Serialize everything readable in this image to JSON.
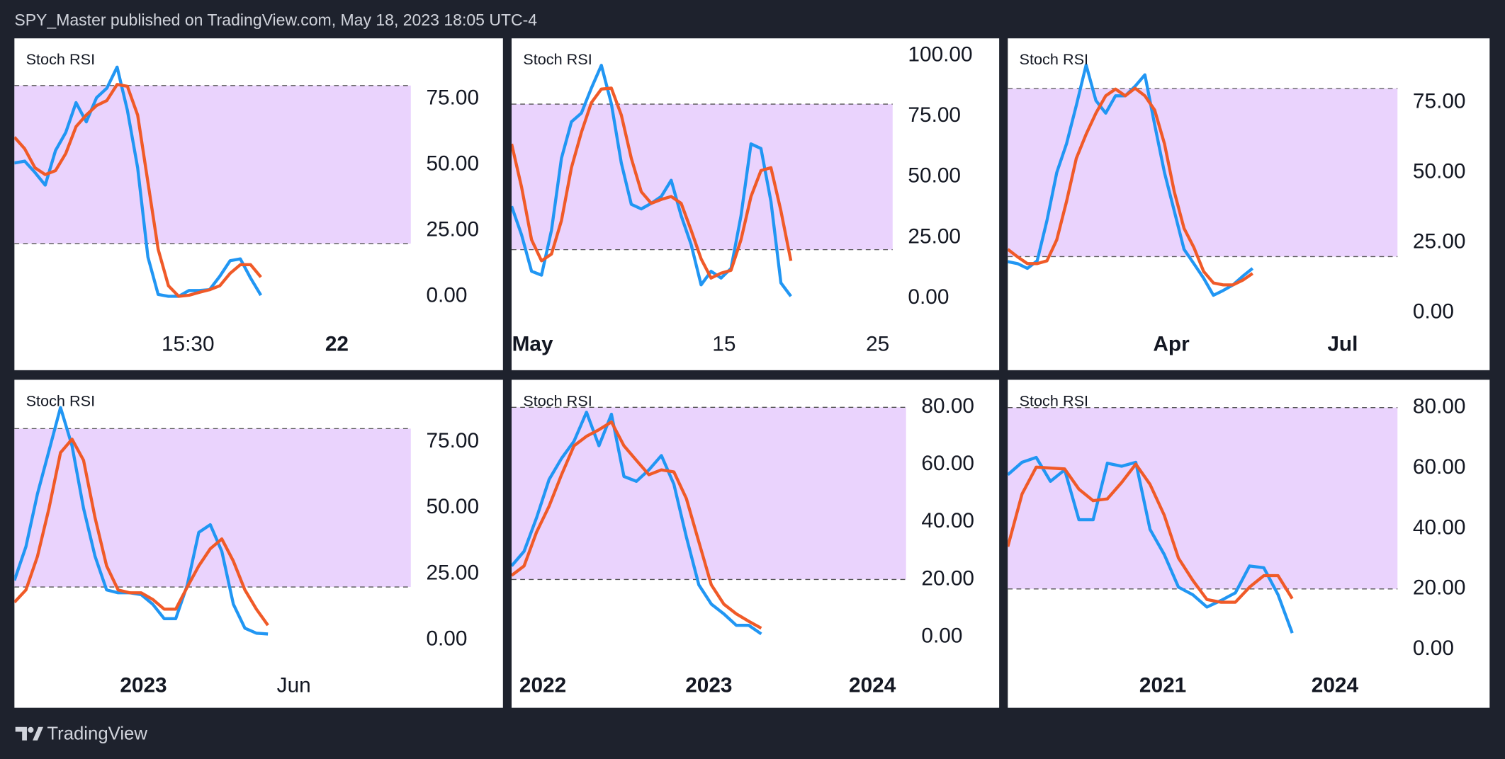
{
  "header": "SPY_Master published on TradingView.com, May 18, 2023 18:05 UTC-4",
  "footer": "TradingView",
  "chart_data": [
    {
      "type": "line",
      "title": "Stoch RSI",
      "band": [
        20,
        80
      ],
      "band_color": "#ead3fd",
      "ylim": [
        -11.3,
        97.9
      ],
      "xlim": [
        0,
        38.6
      ],
      "yticks": [
        {
          "value": 0,
          "label": "0.00"
        },
        {
          "value": 25,
          "label": "25.00"
        },
        {
          "value": 50,
          "label": "50.00"
        },
        {
          "value": 75,
          "label": "75.00"
        }
      ],
      "xticks": [
        {
          "value": 16.9,
          "label": "15:30",
          "bold": false
        },
        {
          "value": 31.4,
          "label": "22",
          "bold": true
        }
      ],
      "series": [
        {
          "color": "#2196f3",
          "values": [
            50.6,
            51.3,
            47,
            42.2,
            55.3,
            62.2,
            73.5,
            66.2,
            75.4,
            79,
            87,
            70.6,
            48.8,
            14.9,
            0.7,
            0,
            0,
            2.2,
            2.2,
            2.5,
            7.6,
            13.5,
            14.2,
            6.9,
            0.4
          ]
        },
        {
          "color": "#f05a28",
          "values": [
            60.4,
            56,
            48.8,
            46.2,
            47.7,
            54.2,
            64.4,
            68.8,
            72.4,
            74.3,
            80.4,
            79.7,
            68.8,
            43.3,
            17.8,
            4,
            0,
            0.4,
            1.5,
            2.5,
            4,
            8.7,
            12,
            12,
            7.3
          ]
        }
      ]
    },
    {
      "type": "line",
      "title": "Stoch RSI",
      "band": [
        20,
        80
      ],
      "band_color": "#ead3fd",
      "ylim": [
        -11.5,
        107.1
      ],
      "xlim": [
        0,
        38.2
      ],
      "yticks": [
        {
          "value": 0,
          "label": "0.00"
        },
        {
          "value": 25,
          "label": "25.00"
        },
        {
          "value": 50,
          "label": "50.00"
        },
        {
          "value": 75,
          "label": "75.00"
        },
        {
          "value": 100,
          "label": "100.00"
        }
      ],
      "xticks": [
        {
          "value": 2.1,
          "label": "May",
          "bold": true
        },
        {
          "value": 21.3,
          "label": "15",
          "bold": false
        },
        {
          "value": 36.7,
          "label": "25",
          "bold": false
        }
      ],
      "series": [
        {
          "color": "#2196f3",
          "values": [
            37.9,
            26.1,
            11.1,
            9.5,
            28,
            57.7,
            72.7,
            76.3,
            86.6,
            96,
            80.2,
            55.7,
            38.7,
            36.8,
            39.1,
            41.9,
            48.6,
            34,
            22.1,
            5.5,
            11.1,
            8.3,
            12.3,
            34,
            63.6,
            61.7,
            39.9,
            6.3,
            0.8
          ]
        },
        {
          "color": "#f05a28",
          "values": [
            63.6,
            45.8,
            24.1,
            15.4,
            18.2,
            32,
            53.8,
            68.4,
            80.6,
            86.2,
            86.6,
            75.5,
            57.7,
            43.9,
            39.1,
            40.7,
            41.9,
            39.1,
            28,
            16.2,
            8.3,
            10.3,
            11.5,
            24.1,
            41.9,
            52.6,
            53.8,
            36,
            15.4
          ]
        }
      ]
    },
    {
      "type": "line",
      "title": "Stoch RSI",
      "band": [
        20,
        80
      ],
      "band_color": "#ead3fd",
      "ylim": [
        -4.8,
        97.9
      ],
      "xlim": [
        0,
        39.8
      ],
      "yticks": [
        {
          "value": 0,
          "label": "0.00"
        },
        {
          "value": 25,
          "label": "25.00"
        },
        {
          "value": 50,
          "label": "50.00"
        },
        {
          "value": 75,
          "label": "75.00"
        }
      ],
      "xticks": [
        {
          "value": 16.7,
          "label": "Apr",
          "bold": true
        },
        {
          "value": 34.2,
          "label": "Jul",
          "bold": true
        }
      ],
      "series": [
        {
          "color": "#2196f3",
          "values": [
            18.2,
            17.5,
            15.8,
            18.5,
            32.9,
            50,
            60.3,
            74,
            88.4,
            75.7,
            71.2,
            77.4,
            77.4,
            80.8,
            84.9,
            67.1,
            50,
            36.3,
            22.6,
            17.5,
            12.3,
            6.2,
            7.9,
            9.9,
            13,
            15.8
          ]
        },
        {
          "color": "#f05a28",
          "values": [
            22.6,
            19.9,
            17.5,
            17.5,
            18.5,
            26,
            39.7,
            55.1,
            63.7,
            71.2,
            77.4,
            79.8,
            77.4,
            80.1,
            77.4,
            72.3,
            60.3,
            43.2,
            30.1,
            23.3,
            14.7,
            10.6,
            9.9,
            9.9,
            11.6,
            14
          ]
        }
      ]
    },
    {
      "type": "line",
      "title": "Stoch RSI",
      "band": [
        20,
        80
      ],
      "band_color": "#ead3fd",
      "ylim": [
        -10.5,
        98.5
      ],
      "xlim": [
        0,
        34.4
      ],
      "yticks": [
        {
          "value": 0,
          "label": "0.00"
        },
        {
          "value": 25,
          "label": "25.00"
        },
        {
          "value": 50,
          "label": "50.00"
        },
        {
          "value": 75,
          "label": "75.00"
        }
      ],
      "xticks": [
        {
          "value": 11.2,
          "label": "2023",
          "bold": true
        },
        {
          "value": 24.25,
          "label": "Jun",
          "bold": false
        }
      ],
      "series": [
        {
          "color": "#2196f3",
          "values": [
            22.5,
            35.3,
            55.3,
            71.6,
            88,
            73.5,
            49.8,
            31.6,
            18.9,
            17.8,
            17.8,
            17.1,
            13.5,
            8,
            8,
            20.7,
            40.7,
            43.6,
            33.5,
            13.5,
            4.4,
            2.5,
            2.2
          ]
        },
        {
          "color": "#f05a28",
          "values": [
            14.2,
            18.9,
            31.6,
            49.8,
            70.9,
            76,
            68,
            46.2,
            28,
            18.9,
            17.8,
            17.8,
            15.3,
            11.6,
            11.6,
            20,
            28,
            34.5,
            38.2,
            29.8,
            18.9,
            11.6,
            5.5
          ]
        }
      ]
    },
    {
      "type": "line",
      "title": "Stoch RSI",
      "band": [
        20,
        80
      ],
      "band_color": "#ead3fd",
      "ylim": [
        -10.7,
        89.6
      ],
      "xlim": [
        0,
        31.6
      ],
      "yticks": [
        {
          "value": 0,
          "label": "0.00"
        },
        {
          "value": 20,
          "label": "20.00"
        },
        {
          "value": 40,
          "label": "40.00"
        },
        {
          "value": 60,
          "label": "60.00"
        },
        {
          "value": 80,
          "label": "80.00"
        }
      ],
      "xticks": [
        {
          "value": 2.5,
          "label": "2022",
          "bold": true
        },
        {
          "value": 15.8,
          "label": "2023",
          "bold": true
        },
        {
          "value": 28.9,
          "label": "2024",
          "bold": true
        }
      ],
      "series": [
        {
          "color": "#2196f3",
          "values": [
            24.7,
            29.8,
            41.5,
            54.8,
            62.2,
            68.2,
            78.3,
            66.6,
            77.6,
            55.9,
            54.2,
            58.2,
            63.2,
            53.2,
            34.8,
            18.1,
            11.4,
            8,
            4,
            4,
            1
          ]
        },
        {
          "color": "#f05a28",
          "values": [
            21.4,
            24.7,
            36.5,
            45.5,
            56.5,
            66.6,
            69.9,
            72.2,
            74.9,
            66.6,
            61.5,
            56.5,
            58.2,
            57.5,
            48.2,
            33.1,
            18.1,
            11.4,
            8,
            5.4,
            3
          ]
        }
      ]
    },
    {
      "type": "line",
      "title": "Stoch RSI",
      "band": [
        20,
        80
      ],
      "band_color": "#ead3fd",
      "ylim": [
        -6,
        89.2
      ],
      "xlim": [
        0,
        27.4
      ],
      "yticks": [
        {
          "value": 0,
          "label": "0.00"
        },
        {
          "value": 20,
          "label": "20.00"
        },
        {
          "value": 40,
          "label": "40.00"
        },
        {
          "value": 60,
          "label": "60.00"
        },
        {
          "value": 80,
          "label": "80.00"
        }
      ],
      "xticks": [
        {
          "value": 10.9,
          "label": "2021",
          "bold": true
        },
        {
          "value": 23,
          "label": "2024",
          "bold": true
        }
      ],
      "series": [
        {
          "color": "#2196f3",
          "values": [
            57.8,
            61.9,
            63.5,
            55.6,
            59.4,
            42.9,
            42.9,
            61.6,
            60.6,
            61.9,
            39.7,
            31.4,
            20.6,
            18.1,
            14,
            16.2,
            18.7,
            27.6,
            27,
            18.1,
            5.4
          ]
        },
        {
          "color": "#f05a28",
          "values": [
            34,
            51.4,
            60.3,
            60,
            59.7,
            53,
            49.2,
            49.8,
            55.2,
            61.3,
            54.6,
            44.4,
            30.2,
            22.9,
            16.5,
            15.6,
            15.6,
            20.6,
            24.4,
            24.4,
            16.8
          ]
        }
      ]
    }
  ]
}
